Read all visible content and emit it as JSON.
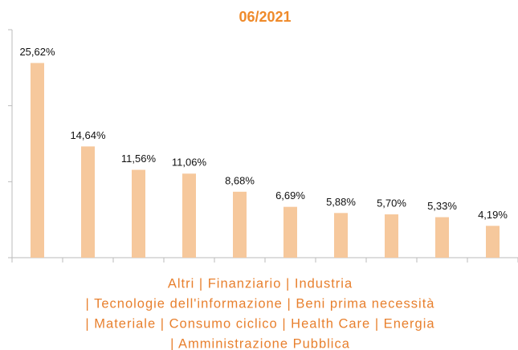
{
  "chart_data": {
    "type": "bar",
    "title": "06/2021",
    "categories": [
      null,
      null,
      null,
      null,
      null,
      null,
      null,
      null,
      null,
      null
    ],
    "values": [
      25.62,
      14.64,
      11.56,
      11.06,
      8.68,
      6.69,
      5.88,
      5.7,
      5.33,
      4.19
    ],
    "value_labels": [
      "25,62%",
      "14,64%",
      "11,56%",
      "11,06%",
      "8,68%",
      "6,69%",
      "5,88%",
      "5,70%",
      "5,33%",
      "4,19%"
    ],
    "color": "#f6c89c",
    "ylim": [
      0,
      30
    ],
    "yticks": [
      0,
      10,
      20,
      30
    ],
    "grid": false,
    "caption_lines": [
      "Altri | Finanziario | Industria",
      "| Tecnologie dell'informazione | Beni prima necessità",
      "| Materiale | Consumo ciclico | Health Care | Energia",
      "| Amministrazione Pubblica"
    ]
  }
}
